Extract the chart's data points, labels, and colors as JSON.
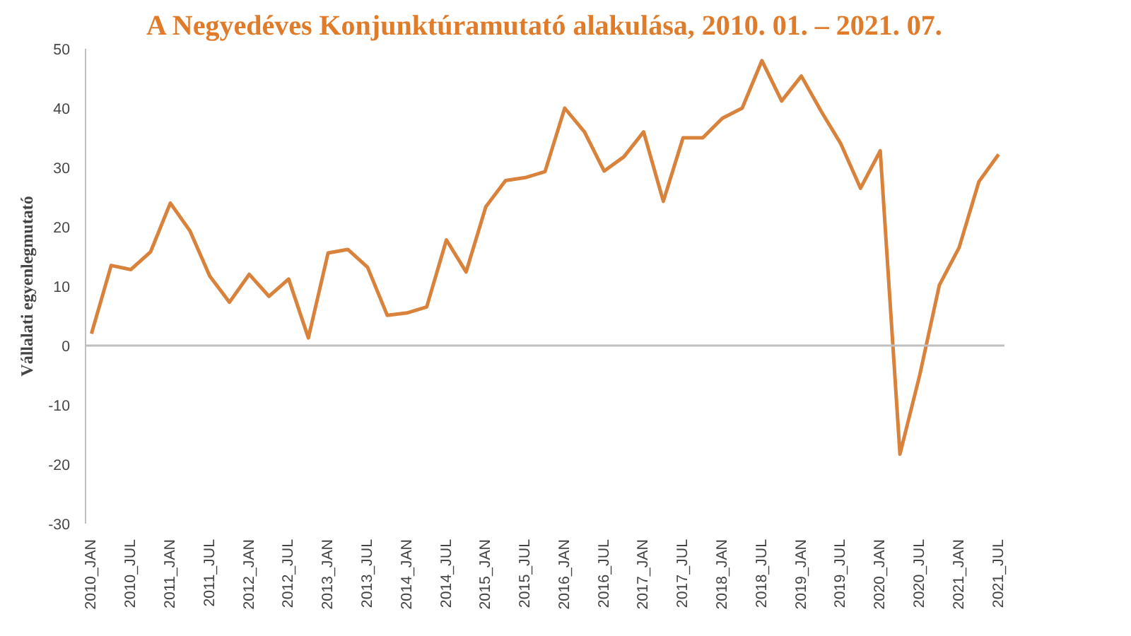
{
  "chart_data": {
    "type": "line",
    "title": "A Negyedéves Konjunktúramutató alakulása, 2010. 01. – 2021. 07.",
    "ylabel": "Vállalati egyenlegmutató",
    "categories": [
      "2010_JAN",
      null,
      "2010_JUL",
      null,
      "2011_JAN",
      null,
      "2011_JUL",
      null,
      "2012_JAN",
      null,
      "2012_JUL",
      null,
      "2013_JAN",
      null,
      "2013_JUL",
      null,
      "2014_JAN",
      null,
      "2014_JUL",
      null,
      "2015_JAN",
      null,
      "2015_JUL",
      null,
      "2016_JAN",
      null,
      "2016_JUL",
      null,
      "2017_JAN",
      null,
      "2017_JUL",
      null,
      "2018_JAN",
      null,
      "2018_JUL",
      null,
      "2019_JAN",
      null,
      "2019_JUL",
      null,
      "2020_JAN",
      null,
      "2020_JUL",
      null,
      "2021_JAN",
      null,
      "2021_JUL"
    ],
    "series": [
      {
        "color": "#d9823b",
        "values": [
          2,
          13.5,
          12.8,
          15.8,
          24,
          19.3,
          11.7,
          7.3,
          12,
          8.3,
          11.2,
          1.3,
          15.6,
          16.2,
          13.2,
          5.1,
          5.5,
          6.5,
          17.8,
          12.4,
          23.4,
          27.8,
          28.3,
          29.3,
          40,
          36,
          29.4,
          31.8,
          36,
          24.3,
          35,
          35,
          38.3,
          40,
          48,
          41.2,
          45.4,
          39.5,
          34,
          26.5,
          32.8,
          -18.3,
          -5,
          10.2,
          16.5,
          27.6,
          32.2
        ]
      }
    ],
    "ylim": [
      -30,
      50
    ],
    "yticks": [
      -30,
      -20,
      -10,
      0,
      10,
      20,
      30,
      40,
      50
    ],
    "ref_lines": [
      {
        "axis": "y",
        "value": 0,
        "color": "#bfbfbf"
      }
    ],
    "grid": false,
    "marker": "none",
    "line_style": "solid"
  }
}
